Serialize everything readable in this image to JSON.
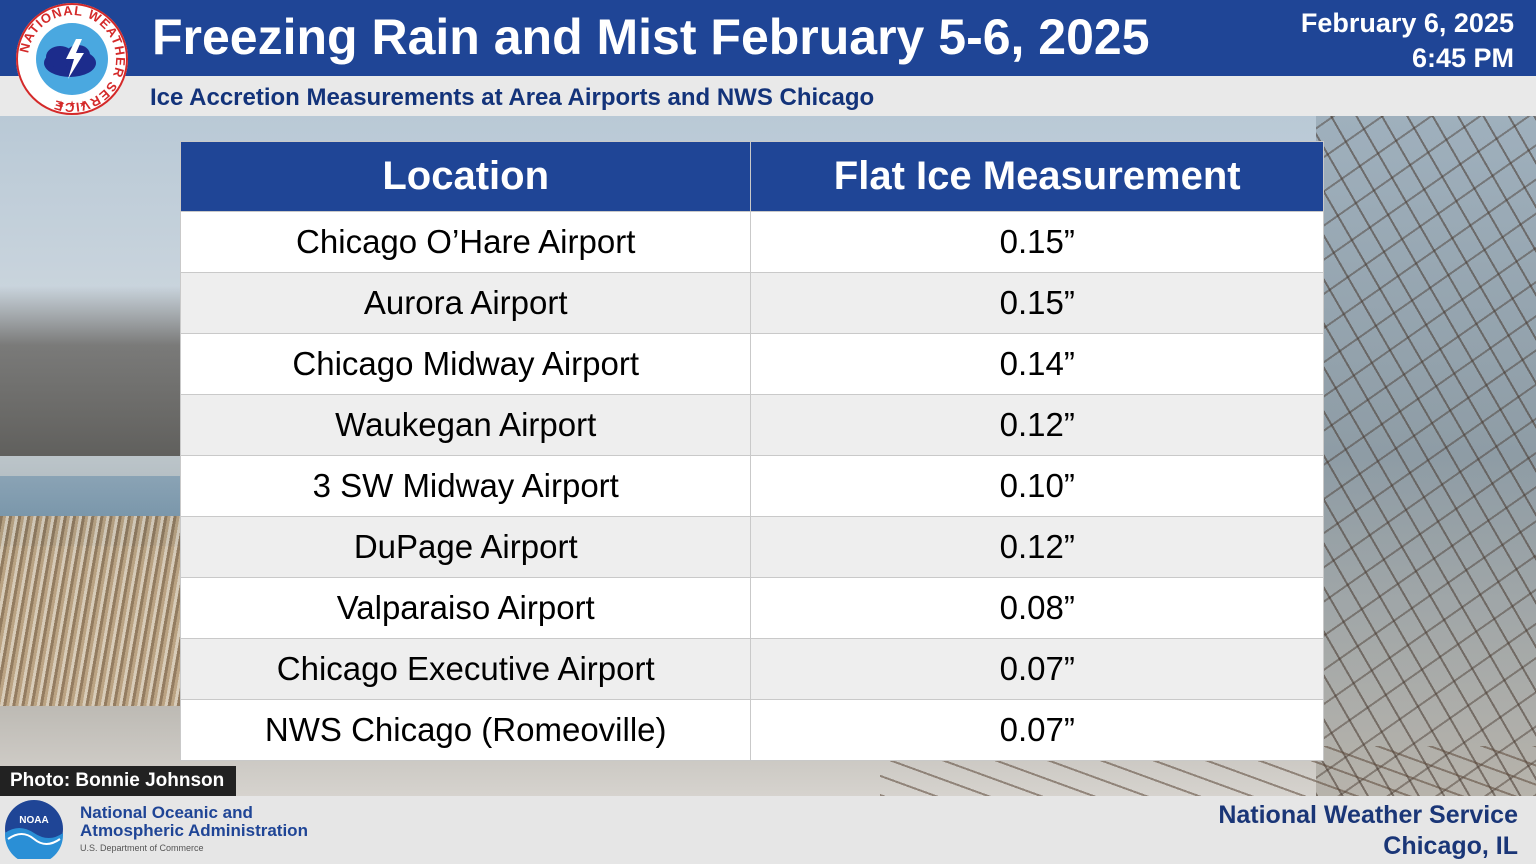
{
  "header": {
    "title": "Freezing Rain and Mist February 5-6, 2025",
    "subtitle": "Ice Accretion Measurements at Area Airports and NWS Chicago",
    "date": "February 6, 2025",
    "time": "6:45 PM",
    "logo_text": "NATIONAL WEATHER SERVICE"
  },
  "table": {
    "headers": [
      "Location",
      "Flat Ice Measurement"
    ],
    "rows": [
      {
        "location": "Chicago O’Hare Airport",
        "value": "0.15”"
      },
      {
        "location": "Aurora Airport",
        "value": "0.15”"
      },
      {
        "location": "Chicago Midway Airport",
        "value": "0.14”"
      },
      {
        "location": "Waukegan Airport",
        "value": "0.12”"
      },
      {
        "location": "3 SW Midway Airport",
        "value": "0.10”"
      },
      {
        "location": "DuPage Airport",
        "value": "0.12”"
      },
      {
        "location": "Valparaiso Airport",
        "value": "0.08”"
      },
      {
        "location": "Chicago Executive Airport",
        "value": "0.07”"
      },
      {
        "location": "NWS Chicago (Romeoville)",
        "value": "0.07”"
      }
    ]
  },
  "photo_credit": "Photo: Bonnie Johnson",
  "footer": {
    "noaa_line1": "National Oceanic and",
    "noaa_line2": "Atmospheric Administration",
    "noaa_dept": "U.S. Department of Commerce",
    "noaa_logo_text": "NOAA",
    "nws_line1": "National Weather Service",
    "nws_line2": "Chicago, IL"
  },
  "colors": {
    "header_blue": "#1f4596",
    "text_navy": "#13337a"
  }
}
